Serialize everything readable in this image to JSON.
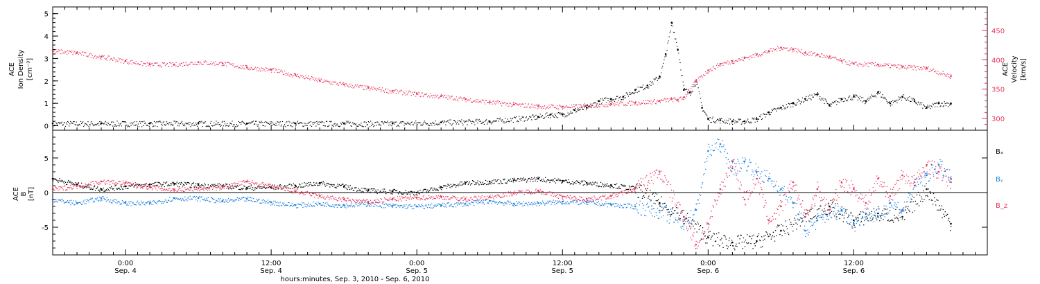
{
  "xlabel": "hours:minutes, Sep.  3, 2010 - Sep.  6, 2010",
  "time_ticks": [
    {
      "t": 0,
      "hm": "0:00",
      "day": "Sep. 4"
    },
    {
      "t": 12,
      "hm": "12:00",
      "day": "Sep. 4"
    },
    {
      "t": 24,
      "hm": "0:00",
      "day": "Sep. 5"
    },
    {
      "t": 36,
      "hm": "12:00",
      "day": "Sep. 5"
    },
    {
      "t": 48,
      "hm": "0:00",
      "day": "Sep. 6"
    },
    {
      "t": 60,
      "hm": "12:00",
      "day": "Sep. 6"
    }
  ],
  "colors": {
    "axis": "#000000",
    "density": "#000000",
    "velocity": "#e8365f",
    "bx": "#000000",
    "by": "#1a7fe0",
    "bz": "#e8365f"
  },
  "chart_data": [
    {
      "type": "scatter",
      "title": "",
      "xlabel": "hours:minutes, Sep.  3, 2010 - Sep.  6, 2010",
      "x_unit": "hours from Sep. 4 0:00 UT",
      "xlim": [
        -6,
        71
      ],
      "ylabel_left": [
        "ACE",
        "Ion Density",
        "[cm⁻³]"
      ],
      "ylim_left": [
        -0.2,
        5.3
      ],
      "yticks_left": [
        0,
        1,
        2,
        3,
        4,
        5
      ],
      "ylabel_right": [
        "ACE",
        "Velocity",
        "[km/s]"
      ],
      "ylim_right": [
        280,
        490
      ],
      "yticks_right": [
        300,
        350,
        400,
        450
      ],
      "series": [
        {
          "axis": "left",
          "color": "#000000",
          "x": [
            -6,
            -2,
            2,
            6,
            10,
            14,
            18,
            22,
            26,
            30,
            34,
            35,
            36,
            37,
            38,
            39,
            40,
            41,
            42,
            43,
            44,
            44.5,
            45,
            45.5,
            46,
            46.5,
            47,
            47.5,
            48,
            49,
            50,
            51,
            52,
            53,
            54,
            55,
            56,
            57,
            58,
            59,
            60,
            61,
            62,
            63,
            64,
            65,
            66,
            67,
            68
          ],
          "values": [
            0.1,
            0.1,
            0.1,
            0.1,
            0.1,
            0.1,
            0.1,
            0.1,
            0.15,
            0.2,
            0.4,
            0.5,
            0.5,
            0.7,
            0.8,
            1.1,
            1.2,
            1.3,
            1.6,
            1.8,
            2.2,
            3.2,
            4.6,
            3.4,
            1.6,
            1.5,
            2.0,
            0.8,
            0.3,
            0.25,
            0.2,
            0.2,
            0.3,
            0.6,
            0.8,
            1.0,
            1.2,
            1.4,
            0.9,
            1.2,
            1.3,
            1.1,
            1.5,
            1.0,
            1.3,
            1.1,
            0.8,
            1.0,
            1.0
          ]
        },
        {
          "axis": "right",
          "color": "#e8365f",
          "x": [
            -6,
            -4,
            -2,
            0,
            2,
            4,
            6,
            8,
            10,
            12,
            14,
            16,
            18,
            20,
            22,
            24,
            26,
            28,
            30,
            32,
            34,
            36,
            38,
            40,
            42,
            44,
            45,
            45.5,
            46,
            47,
            48,
            49,
            50,
            51,
            52,
            53,
            54,
            55,
            56,
            57,
            58,
            59,
            60,
            62,
            64,
            66,
            68
          ],
          "values": [
            415,
            412,
            405,
            398,
            392,
            392,
            396,
            394,
            387,
            383,
            374,
            365,
            358,
            352,
            347,
            342,
            338,
            333,
            328,
            324,
            321,
            320,
            322,
            325,
            327,
            330,
            333,
            332,
            336,
            364,
            382,
            393,
            398,
            403,
            409,
            415,
            421,
            418,
            412,
            409,
            405,
            398,
            393,
            392,
            388,
            386,
            372
          ]
        }
      ]
    },
    {
      "type": "scatter",
      "title": "",
      "xlabel": "hours:minutes, Sep.  3, 2010 - Sep.  6, 2010",
      "x_unit": "hours from Sep. 4 0:00 UT",
      "xlim": [
        -6,
        71
      ],
      "ylabel": [
        "ACE",
        "B",
        "[nT]"
      ],
      "ylim": [
        -9,
        9
      ],
      "yticks": [
        -5,
        0,
        5
      ],
      "series": [
        {
          "name": "Bₓ",
          "color": "#000000",
          "x": [
            -6,
            -4,
            -2,
            0,
            2,
            4,
            6,
            8,
            10,
            12,
            14,
            16,
            18,
            20,
            22,
            24,
            26,
            28,
            30,
            32,
            34,
            36,
            38,
            40,
            42,
            44,
            46,
            48,
            50,
            52,
            54,
            56,
            58,
            60,
            62,
            64,
            66,
            68
          ],
          "values": [
            2.0,
            1.2,
            0.5,
            0.9,
            1.2,
            1.3,
            1.1,
            1.0,
            0.7,
            0.8,
            1.0,
            1.4,
            0.9,
            0.3,
            0.2,
            0.0,
            0.8,
            1.4,
            1.6,
            1.8,
            2.0,
            1.7,
            1.4,
            1.1,
            0.6,
            -1.5,
            -3.5,
            -6.5,
            -7.2,
            -7.0,
            -5.5,
            -3.5,
            -2.0,
            -4.0,
            -3.0,
            -3.5,
            0.5,
            -4.5
          ]
        },
        {
          "name": "Bᵧ",
          "color": "#1a7fe0",
          "x": [
            -6,
            -4,
            -2,
            0,
            2,
            4,
            6,
            8,
            10,
            12,
            14,
            16,
            18,
            20,
            22,
            24,
            26,
            28,
            30,
            32,
            34,
            36,
            38,
            40,
            42,
            44,
            46,
            47,
            48,
            49,
            50,
            51,
            52,
            53,
            54,
            55,
            56,
            57,
            58,
            59,
            60,
            61,
            62,
            63,
            64,
            65,
            66,
            67,
            68
          ],
          "values": [
            -1.0,
            -1.5,
            -0.8,
            -1.5,
            -1.5,
            -0.8,
            -0.8,
            -1.2,
            -0.9,
            -1.4,
            -1.8,
            -1.6,
            -1.8,
            -1.6,
            -1.9,
            -2.0,
            -1.8,
            -1.6,
            -1.2,
            -1.6,
            -1.5,
            -1.3,
            -1.4,
            -1.7,
            -2.0,
            -2.6,
            -4.5,
            -2.5,
            6.0,
            7.0,
            3.5,
            4.5,
            3.0,
            2.0,
            0.5,
            -1.5,
            -5.5,
            -4.0,
            -3.0,
            -2.5,
            -4.5,
            -3.0,
            -3.5,
            -1.5,
            -2.5,
            1.0,
            2.5,
            4.0,
            2.0
          ]
        },
        {
          "name": "B_z",
          "color": "#e8365f",
          "x": [
            -6,
            -4,
            -2,
            0,
            2,
            4,
            6,
            8,
            10,
            12,
            14,
            16,
            18,
            20,
            22,
            24,
            26,
            28,
            30,
            32,
            34,
            36,
            38,
            40,
            42,
            44,
            46,
            47,
            48,
            49,
            50,
            51,
            52,
            53,
            54,
            55,
            56,
            57,
            58,
            59,
            60,
            61,
            62,
            63,
            64,
            65,
            66,
            67,
            68
          ],
          "values": [
            0.5,
            1.0,
            1.6,
            1.4,
            0.8,
            0.4,
            0.6,
            0.8,
            1.6,
            0.9,
            0.2,
            -0.5,
            -1.0,
            -1.3,
            -0.9,
            -0.7,
            -0.6,
            -0.9,
            -0.6,
            0.0,
            0.3,
            -0.6,
            -0.9,
            -0.5,
            0.6,
            3.0,
            -3.5,
            -7.5,
            -4.5,
            0.5,
            4.5,
            -1.0,
            2.0,
            -4.0,
            -2.0,
            1.5,
            -3.5,
            0.5,
            -2.5,
            1.5,
            0.5,
            -1.5,
            2.0,
            -0.5,
            2.5,
            1.5,
            4.0,
            3.0,
            1.5
          ]
        }
      ]
    }
  ]
}
